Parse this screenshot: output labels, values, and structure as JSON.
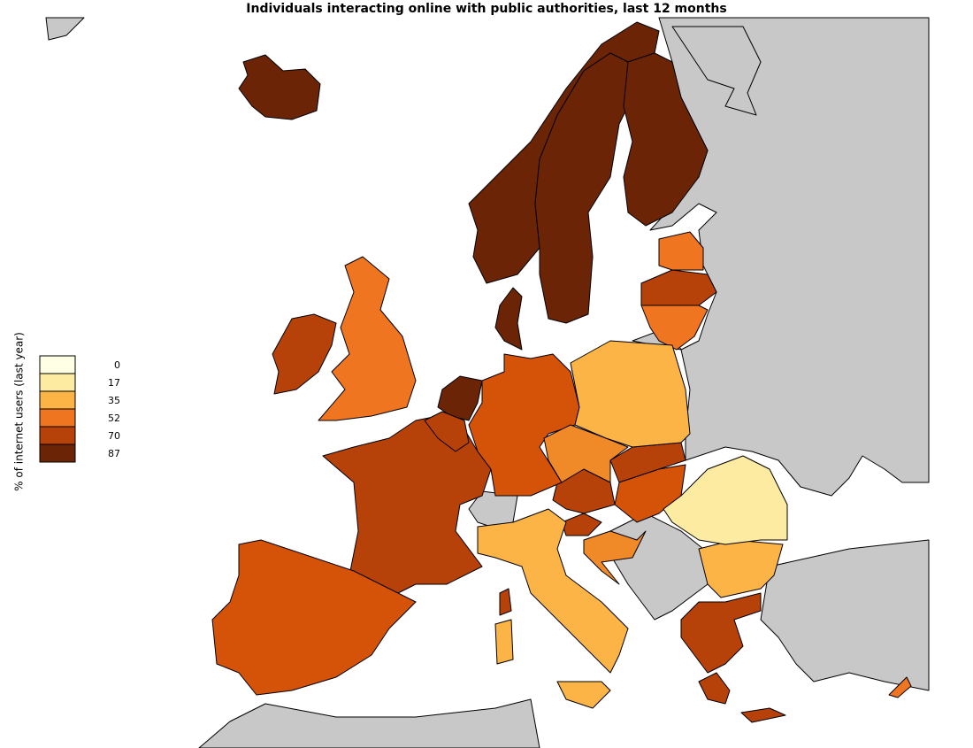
{
  "title": "Individuals interacting online with public authorities, last 12 months",
  "legend": {
    "title": "% of internet users (last year)",
    "breaks": [
      0,
      17,
      35,
      52,
      70,
      87
    ],
    "colors": [
      "#ffffe5",
      "#feeba2",
      "#fdb446",
      "#ef7520",
      "#b6420a",
      "#6b2406"
    ]
  }
}
